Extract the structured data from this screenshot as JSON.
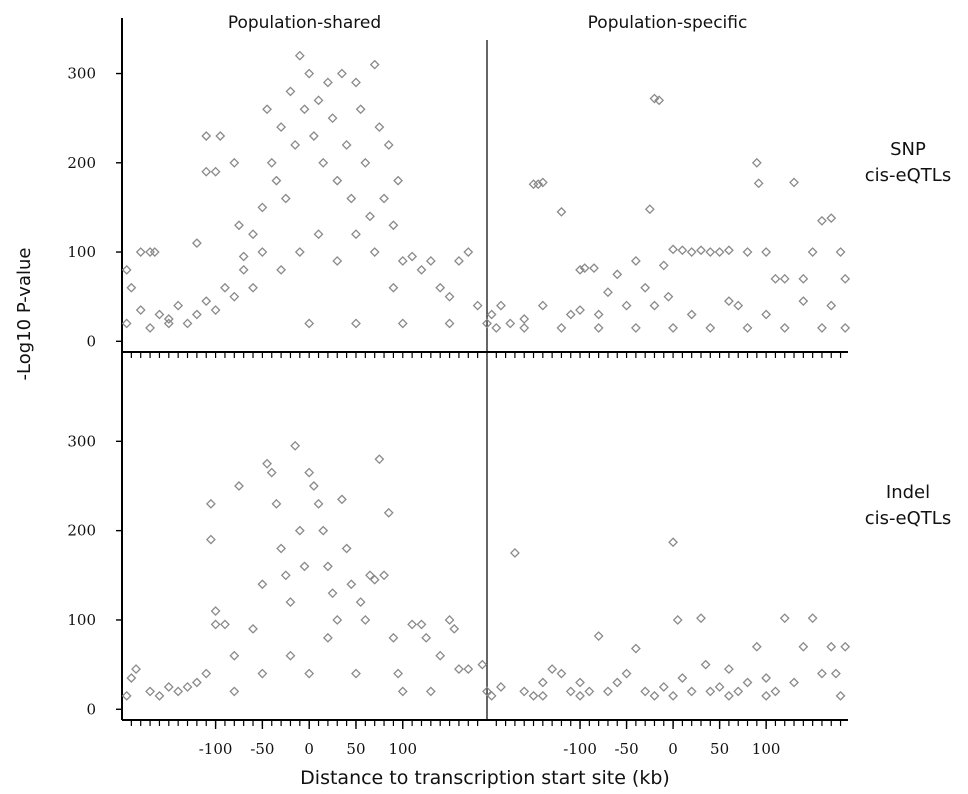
{
  "chart_data": [
    {
      "type": "scatter",
      "title": "Population-shared",
      "ylabel": "-Log10 P-value",
      "color": "#8a8a8a",
      "xlim": [
        -200,
        190
      ],
      "ylim": [
        -12,
        360
      ],
      "yticks": [
        0,
        100,
        200,
        300
      ],
      "xminorticks": [
        -190,
        -180,
        -170,
        -160,
        -150,
        -140,
        -130,
        -120,
        -110,
        -100,
        -90,
        -80,
        -70,
        -60,
        -50,
        -40,
        -30,
        -20,
        -10,
        0,
        10,
        20,
        30,
        40,
        50,
        60,
        70,
        80,
        90,
        100,
        110,
        120,
        130,
        140,
        150,
        160,
        170,
        180
      ],
      "x": [
        -195,
        -180,
        -170,
        -160,
        -150,
        -140,
        -130,
        -120,
        -110,
        -100,
        -90,
        -80,
        -70,
        -60,
        -50,
        -45,
        -40,
        -35,
        -30,
        -25,
        -20,
        -15,
        -10,
        -5,
        0,
        5,
        10,
        15,
        20,
        25,
        30,
        35,
        40,
        45,
        50,
        55,
        60,
        65,
        70,
        75,
        80,
        85,
        90,
        95,
        100,
        110,
        120,
        130,
        140,
        150,
        160,
        170,
        180,
        190,
        -195,
        -190,
        -180,
        -170,
        -165,
        -120,
        -110,
        -110,
        -100,
        -95,
        -80,
        -75,
        -70,
        -60,
        -50,
        -30,
        -10,
        10,
        30,
        50,
        70,
        90,
        -150,
        0,
        50,
        100,
        150
      ],
      "values": [
        20,
        35,
        15,
        30,
        25,
        40,
        20,
        30,
        45,
        35,
        60,
        50,
        80,
        120,
        150,
        260,
        200,
        180,
        240,
        160,
        280,
        220,
        320,
        260,
        300,
        230,
        270,
        200,
        290,
        250,
        180,
        300,
        220,
        160,
        290,
        260,
        200,
        140,
        310,
        240,
        160,
        220,
        130,
        180,
        90,
        95,
        80,
        90,
        60,
        50,
        90,
        100,
        40,
        20,
        80,
        60,
        100,
        100,
        100,
        110,
        230,
        190,
        190,
        230,
        200,
        130,
        95,
        60,
        100,
        80,
        100,
        120,
        90,
        120,
        100,
        60,
        20,
        20,
        20,
        20,
        20
      ]
    },
    {
      "type": "scatter",
      "title": "Population-specific",
      "annotation": [
        "SNP",
        "cis-eQTLs"
      ],
      "color": "#8a8a8a",
      "xlim": [
        -200,
        188
      ],
      "ylim": [
        -12,
        360
      ],
      "xminorticks": [
        -190,
        -180,
        -170,
        -160,
        -150,
        -140,
        -130,
        -120,
        -110,
        -100,
        -90,
        -80,
        -70,
        -60,
        -50,
        -40,
        -30,
        -20,
        -10,
        0,
        10,
        20,
        30,
        40,
        50,
        60,
        70,
        80,
        90,
        100,
        110,
        120,
        130,
        140,
        150,
        160,
        170,
        180
      ],
      "x": [
        -195,
        -185,
        -175,
        -160,
        -150,
        -145,
        -140,
        -120,
        -110,
        -100,
        -95,
        -85,
        -80,
        -70,
        -60,
        -50,
        -40,
        -30,
        -20,
        -15,
        -25,
        -10,
        -5,
        0,
        10,
        20,
        30,
        40,
        50,
        60,
        70,
        80,
        90,
        92,
        100,
        110,
        120,
        130,
        140,
        150,
        160,
        170,
        180,
        185,
        -190,
        -160,
        -120,
        -80,
        -40,
        0,
        40,
        80,
        120,
        160,
        185,
        -100,
        -20,
        60,
        140,
        -140,
        20,
        100,
        170
      ],
      "values": [
        30,
        40,
        20,
        25,
        176,
        176,
        178,
        145,
        30,
        80,
        82,
        82,
        30,
        55,
        75,
        40,
        90,
        60,
        272,
        270,
        148,
        85,
        50,
        103,
        102,
        100,
        102,
        100,
        100,
        102,
        40,
        100,
        200,
        177,
        100,
        70,
        70,
        178,
        70,
        100,
        135,
        138,
        100,
        70,
        15,
        15,
        15,
        15,
        15,
        15,
        15,
        15,
        15,
        15,
        15,
        35,
        40,
        45,
        45,
        40,
        30,
        30,
        40
      ]
    },
    {
      "type": "scatter",
      "xlabel": "Distance to transcription start site (kb)",
      "color": "#8a8a8a",
      "xlim": [
        -200,
        190
      ],
      "ylim": [
        -12,
        400
      ],
      "yticks": [
        0,
        100,
        200,
        300
      ],
      "xticks": [
        -100,
        -50,
        0,
        50,
        100
      ],
      "xminorticks": [
        -190,
        -180,
        -170,
        -160,
        -150,
        -140,
        -130,
        -120,
        -110,
        -100,
        -90,
        -80,
        -70,
        -60,
        -50,
        -40,
        -30,
        -20,
        -10,
        0,
        10,
        20,
        30,
        40,
        50,
        60,
        70,
        80,
        90,
        100,
        110,
        120,
        130,
        140,
        150,
        160,
        170,
        180
      ],
      "x": [
        -195,
        -190,
        -185,
        -170,
        -160,
        -150,
        -140,
        -130,
        -120,
        -110,
        -105,
        -105,
        -100,
        -100,
        -90,
        -80,
        -75,
        -60,
        -50,
        -45,
        -40,
        -35,
        -30,
        -25,
        -20,
        -15,
        -10,
        -5,
        0,
        5,
        10,
        15,
        20,
        25,
        30,
        35,
        40,
        45,
        55,
        60,
        65,
        70,
        75,
        80,
        85,
        90,
        95,
        110,
        120,
        125,
        140,
        150,
        155,
        160,
        170,
        185,
        190,
        -50,
        0,
        50,
        100,
        -20,
        20,
        -80,
        130
      ],
      "values": [
        15,
        35,
        45,
        20,
        15,
        25,
        20,
        25,
        30,
        40,
        230,
        190,
        110,
        95,
        95,
        60,
        250,
        90,
        140,
        275,
        265,
        230,
        180,
        150,
        120,
        295,
        200,
        160,
        265,
        250,
        230,
        200,
        160,
        130,
        100,
        235,
        180,
        140,
        120,
        100,
        150,
        145,
        280,
        150,
        220,
        80,
        40,
        95,
        95,
        80,
        60,
        100,
        90,
        45,
        45,
        50,
        20,
        40,
        40,
        40,
        20,
        60,
        80,
        20,
        20
      ]
    },
    {
      "type": "scatter",
      "annotation": [
        "Indel",
        "cis-eQTLs"
      ],
      "color": "#8a8a8a",
      "xlim": [
        -200,
        188
      ],
      "ylim": [
        -12,
        400
      ],
      "xticks": [
        -100,
        -50,
        0,
        50,
        100
      ],
      "xminorticks": [
        -190,
        -180,
        -170,
        -160,
        -150,
        -140,
        -130,
        -120,
        -110,
        -100,
        -90,
        -80,
        -70,
        -60,
        -50,
        -40,
        -30,
        -20,
        -10,
        0,
        10,
        20,
        30,
        40,
        50,
        60,
        70,
        80,
        90,
        100,
        110,
        120,
        130,
        140,
        150,
        160,
        170,
        180
      ],
      "x": [
        -195,
        -185,
        -170,
        -160,
        -150,
        -140,
        -130,
        -120,
        -110,
        -100,
        -90,
        -80,
        -70,
        -60,
        -50,
        -40,
        -30,
        -20,
        -10,
        0,
        5,
        10,
        20,
        30,
        35,
        40,
        50,
        60,
        70,
        80,
        90,
        100,
        110,
        120,
        130,
        140,
        150,
        160,
        170,
        175,
        185,
        -100,
        0,
        100,
        180,
        -140,
        60
      ],
      "values": [
        15,
        25,
        175,
        20,
        15,
        30,
        45,
        40,
        20,
        30,
        20,
        82,
        20,
        30,
        40,
        68,
        20,
        15,
        25,
        187,
        100,
        35,
        20,
        102,
        50,
        20,
        25,
        45,
        20,
        30,
        70,
        35,
        20,
        102,
        30,
        70,
        102,
        40,
        70,
        40,
        70,
        15,
        15,
        15,
        15,
        15,
        15
      ]
    }
  ]
}
